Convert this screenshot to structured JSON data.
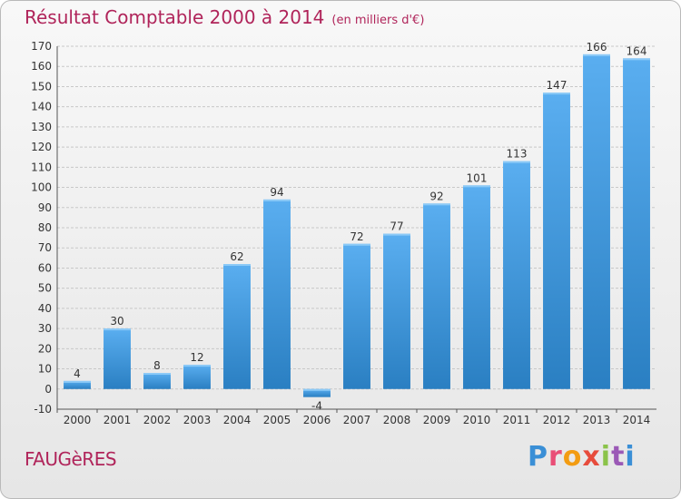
{
  "header": {
    "title": "Résultat Comptable 2000 à 2014",
    "subtitle": "(en milliers d'€)"
  },
  "footer": {
    "commune": "FAUGèRES",
    "logo": "Proxiti"
  },
  "colors": {
    "title": "#b0245a",
    "bar_light": "#5aaef0",
    "bar_dark": "#2a7fc2",
    "grid": "#c8c8c8"
  },
  "chart_data": {
    "type": "bar",
    "title": "Résultat Comptable 2000 à 2014",
    "subtitle": "(en milliers d'€)",
    "categories": [
      "2000",
      "2001",
      "2002",
      "2003",
      "2004",
      "2005",
      "2006",
      "2007",
      "2008",
      "2009",
      "2010",
      "2011",
      "2012",
      "2013",
      "2014"
    ],
    "values": [
      4,
      30,
      8,
      12,
      62,
      94,
      -4,
      72,
      77,
      92,
      101,
      113,
      147,
      166,
      164
    ],
    "ylim": [
      -10,
      170
    ],
    "yticks": [
      -10,
      0,
      10,
      20,
      30,
      40,
      50,
      60,
      70,
      80,
      90,
      100,
      110,
      120,
      130,
      140,
      150,
      160,
      170
    ],
    "grid": true,
    "legend": "none"
  }
}
